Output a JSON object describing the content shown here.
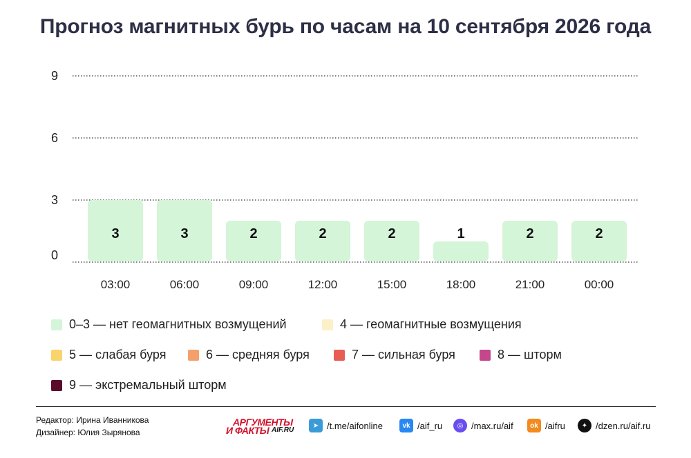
{
  "title": "Прогноз магнитных бурь по часам на 10 сентября 2026 года",
  "chart_data": {
    "type": "bar",
    "categories": [
      "03:00",
      "06:00",
      "09:00",
      "12:00",
      "15:00",
      "18:00",
      "21:00",
      "00:00"
    ],
    "values": [
      3,
      3,
      2,
      2,
      2,
      1,
      2,
      2
    ],
    "yticks": [
      0,
      3,
      6,
      9
    ],
    "ylim": [
      0,
      9
    ],
    "grid": "dotted-horizontal",
    "bar_color": "#d4f5d8"
  },
  "legend": [
    {
      "label": "0–3 — нет геомагнитных возмущений",
      "color": "#d4f5d8"
    },
    {
      "label": "4 — геомагнитные возмущения",
      "color": "#fcf0c8"
    },
    {
      "label": "5 — слабая буря",
      "color": "#f9d46a"
    },
    {
      "label": "6 — средняя буря",
      "color": "#f5a06a"
    },
    {
      "label": "7 — сильная буря",
      "color": "#e85c52"
    },
    {
      "label": "8 — шторм",
      "color": "#c3478a"
    },
    {
      "label": "9 — экстремальный шторм",
      "color": "#5a0b2a"
    }
  ],
  "credits": {
    "editor": "Редактор: Ирина Иванникова",
    "designer": "Дизайнер: Юлия Зырянова"
  },
  "logo": {
    "line1": "АРГУМЕНТЫ",
    "line2": "И ФАКТЫ",
    "line3": "AIF.RU"
  },
  "social": [
    {
      "icon": "telegram-icon",
      "label": "/t.me/aifonline",
      "color": "#3a9bd9"
    },
    {
      "icon": "vk-icon",
      "label": "/aif_ru",
      "color": "#2787f5"
    },
    {
      "icon": "max-icon",
      "label": "/max.ru/aif",
      "color": "#6a4cf0"
    },
    {
      "icon": "odnoklassniki-icon",
      "label": "/aifru",
      "color": "#f28a1e"
    },
    {
      "icon": "dzen-icon",
      "label": "/dzen.ru/aif.ru",
      "color": "#111111"
    }
  ]
}
